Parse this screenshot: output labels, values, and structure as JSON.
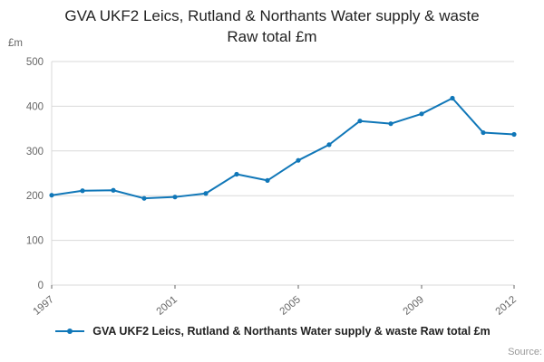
{
  "title": {
    "line1": "GVA UKF2 Leics, Rutland & Northants Water supply & waste",
    "line2": "Raw total £m"
  },
  "chart_data": {
    "type": "line",
    "x": [
      1997,
      1998,
      1999,
      2000,
      2001,
      2002,
      2003,
      2004,
      2005,
      2006,
      2007,
      2008,
      2009,
      2010,
      2011,
      2012
    ],
    "series": [
      {
        "name": "GVA UKF2 Leics, Rutland & Northants Water supply & waste Raw total £m",
        "values": [
          201,
          211,
          212,
          194,
          197,
          205,
          248,
          234,
          279,
          314,
          367,
          361,
          383,
          418,
          341,
          337
        ]
      }
    ],
    "title": "GVA UKF2 Leics, Rutland & Northants Water supply & waste Raw total £m",
    "xlabel": "",
    "ylabel": "£m",
    "ylim": [
      0,
      500
    ],
    "yticks": [
      0,
      100,
      200,
      300,
      400,
      500
    ],
    "xticks": [
      1997,
      2001,
      2005,
      2009,
      2012
    ],
    "grid": true,
    "legend_position": "bottom",
    "line_color": "#1077b8",
    "grid_color": "#d9d9d9",
    "tick_color": "#666666"
  },
  "footer": {
    "source_label": "Source:"
  }
}
